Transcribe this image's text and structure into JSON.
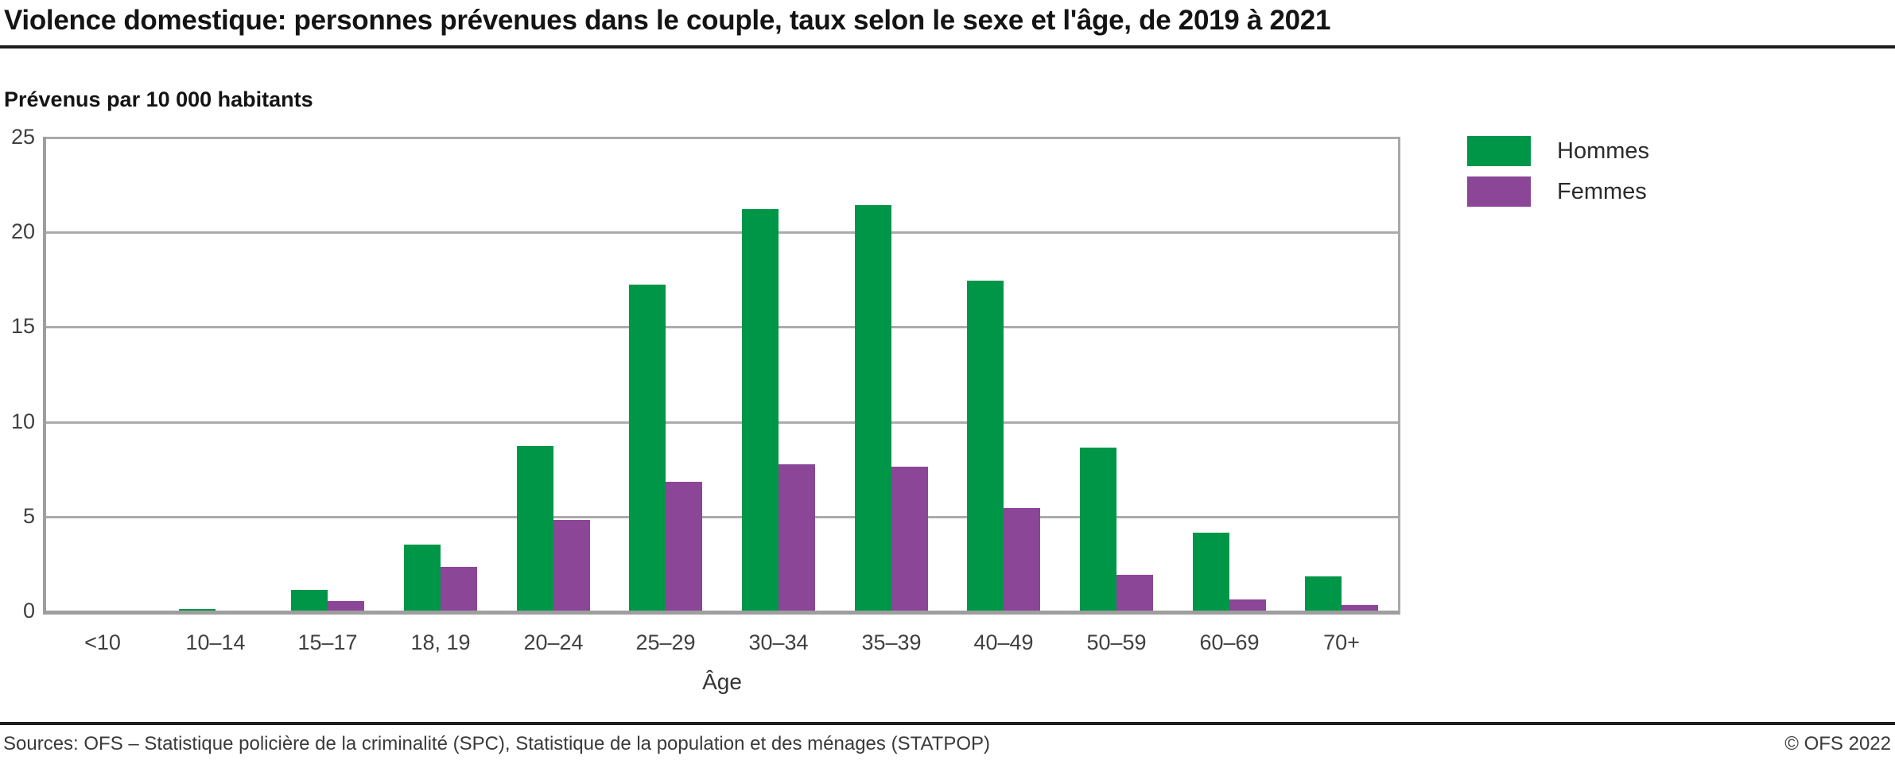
{
  "header": {
    "title": "Violence domestique: personnes prévenues dans le couple, taux selon le sexe et l'âge, de 2019 à 2021"
  },
  "subtitle": "Prévenus par 10 000 habitants",
  "colors": {
    "hommes": "#009648",
    "femmes": "#8B4697",
    "gridline": "#ababab",
    "axis": "#9e9e9e",
    "title_text": "#141414",
    "tick_text": "#404040",
    "rule": "#1d1d1b"
  },
  "chart_data": {
    "type": "bar",
    "title": "Violence domestique: personnes prévenues dans le couple, taux selon le sexe et l'âge, de 2019 à 2021",
    "subtitle": "Prévenus par 10 000 habitants",
    "categories": [
      "<10",
      "10–14",
      "15–17",
      "18, 19",
      "20–24",
      "25–29",
      "30–34",
      "35–39",
      "40–49",
      "50–59",
      "60–69",
      "70+"
    ],
    "series": [
      {
        "name": "Hommes",
        "color": "#009648",
        "values": [
          0,
          0.1,
          1.1,
          3.5,
          8.7,
          17.2,
          21.2,
          21.4,
          17.4,
          8.6,
          4.1,
          1.8
        ]
      },
      {
        "name": "Femmes",
        "color": "#8B4697",
        "values": [
          0,
          0,
          0.5,
          2.3,
          4.8,
          6.8,
          7.7,
          7.6,
          5.4,
          1.9,
          0.6,
          0.3
        ]
      }
    ],
    "xlabel": "Âge",
    "ylabel": "Prévenus par 10 000 habitants",
    "ylim": [
      0,
      25
    ],
    "yticks": [
      0,
      5,
      10,
      15,
      20,
      25
    ],
    "grid": true,
    "legend_position": "top-right"
  },
  "footer": {
    "sources": "Sources: OFS – Statistique policière de la criminalité (SPC), Statistique de la population et des ménages (STATPOP)",
    "copyright": "© OFS 2022"
  }
}
